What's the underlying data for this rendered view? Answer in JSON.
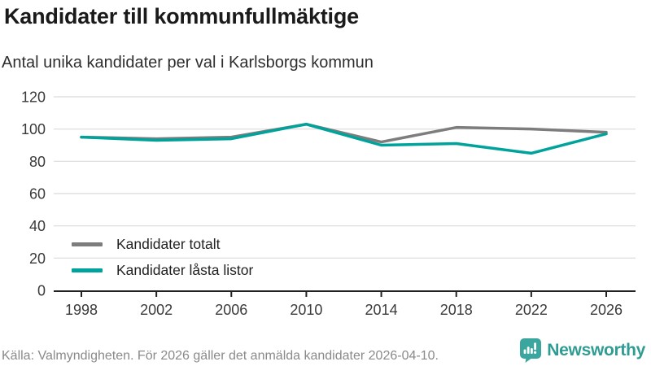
{
  "header": {
    "title": "Kandidater till kommunfullmäktige",
    "subtitle": "Antal unika kandidater per val i Karlsborgs kommun"
  },
  "chart_data": {
    "type": "line",
    "x": [
      "1998",
      "2002",
      "2006",
      "2010",
      "2014",
      "2018",
      "2022",
      "2026"
    ],
    "series": [
      {
        "name": "Kandidater totalt",
        "color": "#7d7d7d",
        "values": [
          95,
          94,
          95,
          103,
          92,
          101,
          100,
          98
        ]
      },
      {
        "name": "Kandidater låsta listor",
        "color": "#00a39b",
        "values": [
          95,
          93,
          94,
          103,
          90,
          91,
          85,
          97
        ]
      }
    ],
    "ylim": [
      0,
      120
    ],
    "yticks": [
      0,
      20,
      40,
      60,
      80,
      100,
      120
    ],
    "grid": true,
    "legend_position": "inside-bottom-left",
    "title": "Kandidater till kommunfullmäktige",
    "xlabel": "",
    "ylabel": ""
  },
  "colors": {
    "grid": "#e0e0e0",
    "axis": "#222222",
    "tick_label": "#3a3a3a",
    "accent_teal": "#00a39b",
    "series_gray": "#7d7d7d",
    "brand_teal": "#3aa69d"
  },
  "footer": {
    "source": "Källa: Valmyndigheten. För 2026 gäller det anmälda kandidater 2026-04-10.",
    "brand": "Newsworthy"
  }
}
